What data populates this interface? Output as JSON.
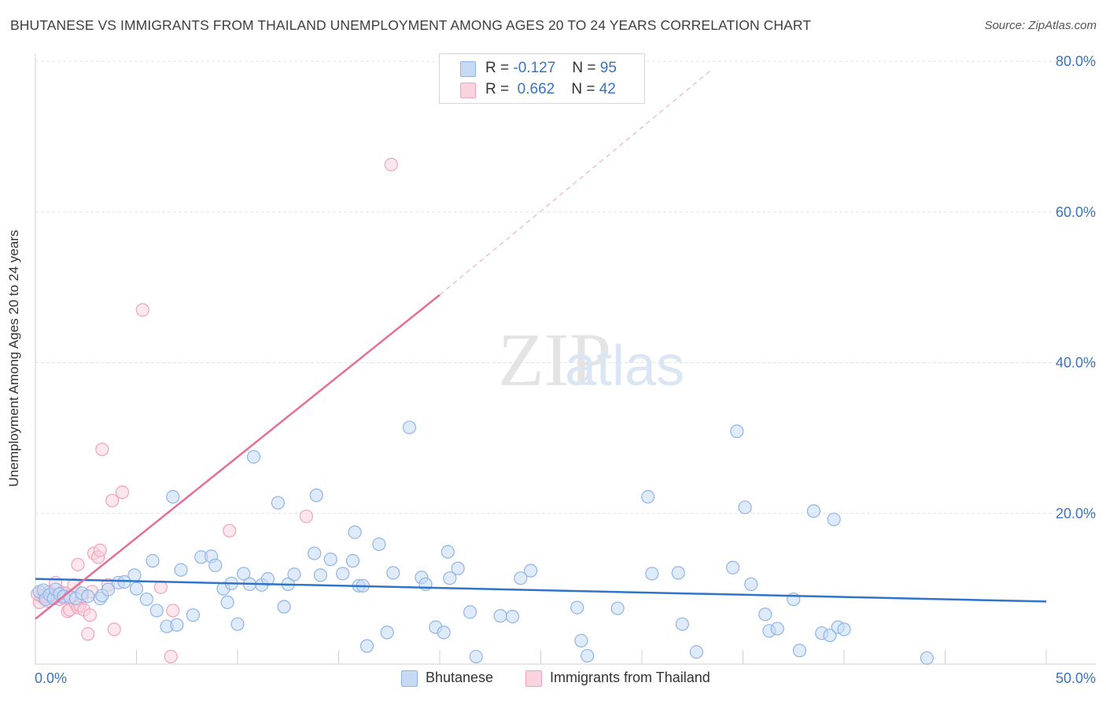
{
  "title": "BHUTANESE VS IMMIGRANTS FROM THAILAND UNEMPLOYMENT AMONG AGES 20 TO 24 YEARS CORRELATION CHART",
  "source": "Source: ZipAtlas.com",
  "watermark": {
    "zip": "ZIP",
    "atlas": "atlas"
  },
  "legend_top": [
    {
      "r_label": "R =",
      "r_value": "-0.127",
      "n_label": "N =",
      "n_value": "95"
    },
    {
      "r_label": "R =",
      "r_value": "0.662",
      "n_label": "N =",
      "n_value": "42"
    }
  ],
  "legend_bottom": [
    "Bhutanese",
    "Immigrants from Thailand"
  ],
  "chart_data": {
    "type": "scatter",
    "xlabel": "",
    "ylabel": "Unemployment Among Ages 20 to 24 years",
    "xlim": [
      0,
      50
    ],
    "ylim": [
      0,
      80
    ],
    "x_tick_labels": [
      {
        "value": 0,
        "label": "0.0%"
      },
      {
        "value": 50,
        "label": "50.0%"
      }
    ],
    "y_tick_labels": [
      {
        "value": 20,
        "label": "20.0%"
      },
      {
        "value": 40,
        "label": "40.0%"
      },
      {
        "value": 60,
        "label": "60.0%"
      },
      {
        "value": 80,
        "label": "80.0%"
      }
    ],
    "grid": true,
    "legend_position": "top-center",
    "series": [
      {
        "name": "Bhutanese",
        "color": "#8fb4e8",
        "fill": "#c7daf5",
        "line_color": "#2f74c9",
        "trend": {
          "x": [
            0,
            50
          ],
          "y": [
            11.3,
            8.3
          ]
        },
        "points": [
          [
            0.2,
            9.6
          ],
          [
            0.4,
            9.8
          ],
          [
            0.5,
            8.6
          ],
          [
            0.7,
            9.2
          ],
          [
            0.9,
            8.7
          ],
          [
            1.0,
            9.9
          ],
          [
            1.2,
            9.3
          ],
          [
            1.4,
            9.0
          ],
          [
            1.7,
            8.9
          ],
          [
            2.0,
            8.7
          ],
          [
            2.3,
            9.4
          ],
          [
            2.6,
            9.0
          ],
          [
            3.2,
            8.7
          ],
          [
            3.3,
            9.1
          ],
          [
            3.6,
            9.9
          ],
          [
            4.1,
            10.8
          ],
          [
            4.4,
            10.9
          ],
          [
            4.9,
            11.8
          ],
          [
            5.0,
            10.0
          ],
          [
            5.5,
            8.6
          ],
          [
            5.8,
            13.7
          ],
          [
            6.0,
            7.1
          ],
          [
            6.5,
            5.0
          ],
          [
            6.8,
            22.2
          ],
          [
            7.0,
            5.2
          ],
          [
            7.2,
            12.5
          ],
          [
            7.8,
            6.5
          ],
          [
            8.2,
            14.2
          ],
          [
            8.7,
            14.3
          ],
          [
            8.9,
            13.1
          ],
          [
            9.3,
            10.0
          ],
          [
            9.5,
            8.2
          ],
          [
            9.7,
            10.7
          ],
          [
            10.0,
            5.3
          ],
          [
            10.3,
            12.0
          ],
          [
            10.6,
            10.6
          ],
          [
            10.8,
            27.5
          ],
          [
            11.2,
            10.5
          ],
          [
            11.5,
            11.3
          ],
          [
            12.0,
            21.4
          ],
          [
            12.3,
            7.6
          ],
          [
            12.5,
            10.6
          ],
          [
            12.8,
            11.9
          ],
          [
            13.8,
            14.7
          ],
          [
            13.9,
            22.4
          ],
          [
            14.1,
            11.8
          ],
          [
            14.6,
            13.9
          ],
          [
            15.2,
            12.0
          ],
          [
            15.7,
            13.7
          ],
          [
            15.8,
            17.5
          ],
          [
            16.0,
            10.4
          ],
          [
            16.4,
            2.4
          ],
          [
            16.2,
            10.4
          ],
          [
            17.0,
            15.9
          ],
          [
            17.4,
            4.2
          ],
          [
            17.7,
            12.1
          ],
          [
            18.5,
            31.4
          ],
          [
            19.1,
            11.5
          ],
          [
            19.3,
            10.6
          ],
          [
            19.8,
            4.9
          ],
          [
            20.2,
            4.2
          ],
          [
            20.4,
            14.9
          ],
          [
            20.5,
            11.4
          ],
          [
            20.9,
            12.7
          ],
          [
            21.5,
            6.9
          ],
          [
            21.8,
            1.0
          ],
          [
            23.0,
            6.4
          ],
          [
            23.6,
            6.3
          ],
          [
            24.0,
            11.4
          ],
          [
            24.5,
            12.4
          ],
          [
            26.8,
            7.5
          ],
          [
            27.0,
            3.1
          ],
          [
            27.3,
            1.1
          ],
          [
            28.8,
            7.4
          ],
          [
            30.3,
            22.2
          ],
          [
            30.5,
            12.0
          ],
          [
            31.8,
            12.1
          ],
          [
            32.0,
            5.3
          ],
          [
            32.7,
            1.6
          ],
          [
            34.7,
            30.9
          ],
          [
            34.5,
            12.8
          ],
          [
            35.1,
            20.8
          ],
          [
            35.4,
            10.6
          ],
          [
            36.1,
            6.6
          ],
          [
            36.3,
            4.4
          ],
          [
            36.7,
            4.7
          ],
          [
            37.5,
            8.6
          ],
          [
            37.8,
            1.8
          ],
          [
            38.5,
            20.3
          ],
          [
            38.9,
            4.1
          ],
          [
            39.3,
            3.8
          ],
          [
            39.5,
            19.2
          ],
          [
            39.7,
            4.9
          ],
          [
            40.0,
            4.6
          ],
          [
            44.1,
            0.8
          ]
        ]
      },
      {
        "name": "Immigrants from Thailand",
        "color": "#f0a3bb",
        "fill": "#f9d3de",
        "line_color": "#e56e96",
        "trend": {
          "x": [
            0,
            20
          ],
          "y": [
            6.0,
            49.0
          ]
        },
        "trend_extension": {
          "x": [
            20,
            33.5
          ],
          "y": [
            49.0,
            79.0
          ]
        },
        "points": [
          [
            0.2,
            8.2
          ],
          [
            0.3,
            9.0
          ],
          [
            0.4,
            8.8
          ],
          [
            0.6,
            8.4
          ],
          [
            0.7,
            9.6
          ],
          [
            0.8,
            9.1
          ],
          [
            0.9,
            8.9
          ],
          [
            1.0,
            10.8
          ],
          [
            1.1,
            9.2
          ],
          [
            1.2,
            8.6
          ],
          [
            1.3,
            9.5
          ],
          [
            1.4,
            8.8
          ],
          [
            1.5,
            9.4
          ],
          [
            1.6,
            7.0
          ],
          [
            1.7,
            7.2
          ],
          [
            1.9,
            10.5
          ],
          [
            2.0,
            8.0
          ],
          [
            2.1,
            7.5
          ],
          [
            2.2,
            7.8
          ],
          [
            2.1,
            13.2
          ],
          [
            2.3,
            9.0
          ],
          [
            2.4,
            7.2
          ],
          [
            2.6,
            4.0
          ],
          [
            2.7,
            6.5
          ],
          [
            2.8,
            9.6
          ],
          [
            2.9,
            14.7
          ],
          [
            3.1,
            14.2
          ],
          [
            3.2,
            15.1
          ],
          [
            3.3,
            28.5
          ],
          [
            3.6,
            10.5
          ],
          [
            3.8,
            21.7
          ],
          [
            3.9,
            4.6
          ],
          [
            4.3,
            22.8
          ],
          [
            5.3,
            47.0
          ],
          [
            6.2,
            10.2
          ],
          [
            6.7,
            1.0
          ],
          [
            6.8,
            7.1
          ],
          [
            9.6,
            17.7
          ],
          [
            13.4,
            19.6
          ],
          [
            17.6,
            66.3
          ],
          [
            0.1,
            9.3
          ],
          [
            0.5,
            9.0
          ]
        ]
      }
    ]
  }
}
